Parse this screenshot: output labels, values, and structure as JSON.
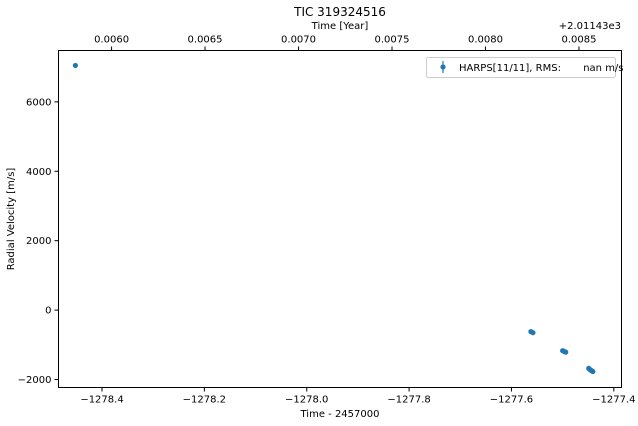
{
  "chart_data": {
    "type": "scatter",
    "title": "TIC 319324516",
    "xlabel": "Time - 2457000",
    "ylabel": "Radial Velocity [m/s]",
    "top_xlabel": "Time [Year]",
    "top_offset_label": "+2.01143e3",
    "xlim": [
      -1278.485,
      -1277.385
    ],
    "ylim": [
      -2230,
      7480
    ],
    "bottom_ticks": [
      {
        "value": -1278.4,
        "label": "−1278.4"
      },
      {
        "value": -1278.2,
        "label": "−1278.2"
      },
      {
        "value": -1278.0,
        "label": "−1278.0"
      },
      {
        "value": -1277.8,
        "label": "−1277.8"
      },
      {
        "value": -1277.6,
        "label": "−1277.6"
      },
      {
        "value": -1277.4,
        "label": "−1277.4"
      }
    ],
    "top_ticks": [
      {
        "value": -1278.3813,
        "label": "0.0060"
      },
      {
        "value": -1278.1987,
        "label": "0.0065"
      },
      {
        "value": -1278.016,
        "label": "0.0070"
      },
      {
        "value": -1277.8334,
        "label": "0.0075"
      },
      {
        "value": -1277.6508,
        "label": "0.0080"
      },
      {
        "value": -1277.4681,
        "label": "0.0085"
      }
    ],
    "y_ticks": [
      {
        "value": -2000,
        "label": "−2000"
      },
      {
        "value": 0,
        "label": "0"
      },
      {
        "value": 2000,
        "label": "2000"
      },
      {
        "value": 4000,
        "label": "4000"
      },
      {
        "value": 6000,
        "label": "6000"
      }
    ],
    "grid": false,
    "legend_position": "top-right",
    "series": [
      {
        "name": "HARPS[11/11], RMS:       nan m/s",
        "color": "#1f77b4",
        "x": [
          -1278.452,
          -1277.562,
          -1277.558,
          -1277.5,
          -1277.497,
          -1277.494,
          -1277.449,
          -1277.447,
          -1277.445,
          -1277.443,
          -1277.441
        ],
        "y": [
          7050,
          -620,
          -650,
          -1170,
          -1190,
          -1210,
          -1680,
          -1710,
          -1730,
          -1750,
          -1770
        ]
      }
    ]
  }
}
